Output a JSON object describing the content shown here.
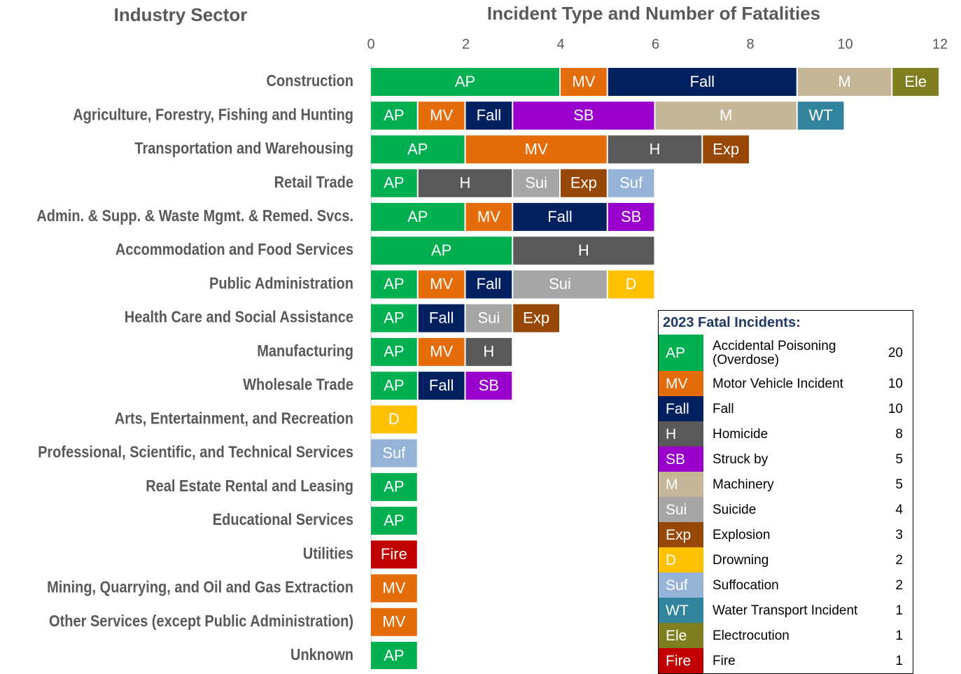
{
  "chart_data": {
    "type": "stacked-bar-horizontal",
    "title": "Incident Type and Number of Fatalities",
    "category_axis_title": "Industry Sector",
    "legend_title": "2023 Fatal Incidents:",
    "categories": [
      "Construction",
      "Agriculture, Forestry, Fishing and Hunting",
      "Transportation and Warehousing",
      "Retail Trade",
      "Admin. & Supp. & Waste Mgmt. & Remed. Svcs.",
      "Accommodation and Food Services",
      "Public Administration",
      "Health Care and Social Assistance",
      "Manufacturing",
      "Wholesale Trade",
      "Arts, Entertainment, and Recreation",
      "Professional, Scientific, and Technical Services",
      "Real Estate Rental and Leasing",
      "Educational Services",
      "Utilities",
      "Mining, Quarrying, and Oil and Gas Extraction",
      "Other Services (except Public Administration)",
      "Unknown"
    ],
    "xlim": [
      0,
      12
    ],
    "xticks": [
      0,
      2,
      4,
      6,
      8,
      10,
      12
    ],
    "series": [
      {
        "name": "AP",
        "label": "Accidental Poisoning (Overdose)",
        "total": 20,
        "color": "#00b050",
        "values": [
          4,
          1,
          2,
          1,
          2,
          3,
          1,
          1,
          1,
          1,
          null,
          null,
          1,
          1,
          null,
          null,
          null,
          1
        ]
      },
      {
        "name": "MV",
        "label": "Motor Vehicle Incident",
        "total": 10,
        "color": "#e46c0a",
        "values": [
          1,
          1,
          3,
          null,
          1,
          null,
          1,
          null,
          1,
          null,
          null,
          null,
          null,
          null,
          null,
          1,
          1,
          null
        ]
      },
      {
        "name": "Fall",
        "label": "Fall",
        "total": 10,
        "color": "#002060",
        "values": [
          4,
          1,
          null,
          null,
          2,
          null,
          1,
          1,
          null,
          1,
          null,
          null,
          null,
          null,
          null,
          null,
          null,
          null
        ]
      },
      {
        "name": "H",
        "label": "Homicide",
        "total": 8,
        "color": "#595959",
        "values": [
          null,
          null,
          2,
          2,
          null,
          3,
          null,
          null,
          1,
          null,
          null,
          null,
          null,
          null,
          null,
          null,
          null,
          null
        ]
      },
      {
        "name": "SB",
        "label": "Struck by",
        "total": 5,
        "color": "#9900cc",
        "values": [
          null,
          3,
          null,
          null,
          1,
          null,
          null,
          null,
          null,
          1,
          null,
          null,
          null,
          null,
          null,
          null,
          null,
          null
        ]
      },
      {
        "name": "M",
        "label": "Machinery",
        "total": 5,
        "color": "#c4b696",
        "values": [
          2,
          3,
          null,
          null,
          null,
          null,
          null,
          null,
          null,
          null,
          null,
          null,
          null,
          null,
          null,
          null,
          null,
          null
        ]
      },
      {
        "name": "Sui",
        "label": "Suicide",
        "total": 4,
        "color": "#a6a6a6",
        "values": [
          null,
          null,
          null,
          1,
          null,
          null,
          2,
          1,
          null,
          null,
          null,
          null,
          null,
          null,
          null,
          null,
          null,
          null
        ]
      },
      {
        "name": "Exp",
        "label": "Explosion",
        "total": 3,
        "color": "#974806",
        "values": [
          null,
          null,
          1,
          1,
          null,
          null,
          null,
          1,
          null,
          null,
          null,
          null,
          null,
          null,
          null,
          null,
          null,
          null
        ]
      },
      {
        "name": "D",
        "label": "Drowning",
        "total": 2,
        "color": "#ffc000",
        "values": [
          null,
          null,
          null,
          null,
          null,
          null,
          1,
          null,
          null,
          null,
          1,
          null,
          null,
          null,
          null,
          null,
          null,
          null
        ]
      },
      {
        "name": "Suf",
        "label": "Suffocation",
        "total": 2,
        "color": "#95b3d7",
        "values": [
          null,
          null,
          null,
          1,
          null,
          null,
          null,
          null,
          null,
          null,
          null,
          1,
          null,
          null,
          null,
          null,
          null,
          null
        ]
      },
      {
        "name": "WT",
        "label": "Water Transport Incident",
        "total": 1,
        "color": "#31849b",
        "values": [
          null,
          1,
          null,
          null,
          null,
          null,
          null,
          null,
          null,
          null,
          null,
          null,
          null,
          null,
          null,
          null,
          null,
          null
        ]
      },
      {
        "name": "Ele",
        "label": "Electrocution",
        "total": 1,
        "color": "#7f7f1f",
        "values": [
          1,
          null,
          null,
          null,
          null,
          null,
          null,
          null,
          null,
          null,
          null,
          null,
          null,
          null,
          null,
          null,
          null,
          null
        ]
      },
      {
        "name": "Fire",
        "label": "Fire",
        "total": 1,
        "color": "#c00000",
        "values": [
          null,
          null,
          null,
          null,
          null,
          null,
          null,
          null,
          null,
          null,
          null,
          null,
          null,
          null,
          1,
          null,
          null,
          null
        ]
      }
    ]
  }
}
